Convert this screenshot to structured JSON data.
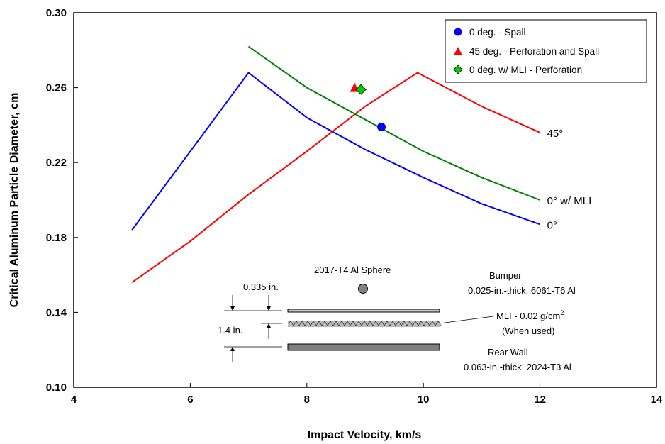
{
  "chart_data": {
    "type": "line",
    "xlabel": "Impact Velocity, km/s",
    "ylabel": "Critical Aluminum Particle Diameter, cm",
    "xlim": [
      4,
      14
    ],
    "ylim": [
      0.1,
      0.3
    ],
    "x_ticks": [
      "4",
      "6",
      "8",
      "10",
      "12",
      "14"
    ],
    "y_ticks": [
      "0.10",
      "0.14",
      "0.18",
      "0.22",
      "0.26",
      "0.30"
    ],
    "grid": false,
    "legend_position": "top-right",
    "series": [
      {
        "id": "0deg",
        "label": "0°",
        "color": "#0000ff",
        "points": [
          [
            5.0,
            0.184
          ],
          [
            7.0,
            0.268
          ],
          [
            8.0,
            0.244
          ],
          [
            9.0,
            0.227
          ],
          [
            10.0,
            0.212
          ],
          [
            11.0,
            0.198
          ],
          [
            12.0,
            0.187
          ]
        ]
      },
      {
        "id": "45deg",
        "label": "45°",
        "color": "#ff0000",
        "points": [
          [
            5.0,
            0.156
          ],
          [
            6.0,
            0.178
          ],
          [
            7.0,
            0.203
          ],
          [
            8.0,
            0.226
          ],
          [
            9.0,
            0.25
          ],
          [
            9.9,
            0.268
          ],
          [
            11.0,
            0.25
          ],
          [
            12.0,
            0.236
          ]
        ]
      },
      {
        "id": "0deg-mli",
        "label": "0° w/ MLI",
        "color": "#008000",
        "points": [
          [
            7.0,
            0.282
          ],
          [
            8.0,
            0.26
          ],
          [
            9.0,
            0.243
          ],
          [
            10.0,
            0.226
          ],
          [
            11.0,
            0.212
          ],
          [
            12.0,
            0.2
          ]
        ]
      }
    ],
    "markers": [
      {
        "name": "0 deg. - Spall",
        "shape": "circle",
        "color": "#0000ff",
        "x": 9.28,
        "y": 0.239
      },
      {
        "name": "45 deg. - Perforation and Spall",
        "shape": "triangle",
        "color": "#ff0000",
        "x": 8.82,
        "y": 0.26
      },
      {
        "name": "0 deg. w/ MLI - Perforation",
        "shape": "diamond",
        "color": "#00cc00",
        "x": 8.93,
        "y": 0.259
      }
    ],
    "inset": {
      "sphere_label": "2017-T4 Al Sphere",
      "bumper_label": "Bumper",
      "bumper_spec": "0.025-in.-thick, 6061-T6 Al",
      "mli_label": "MLI - 0.02 g/cm",
      "mli_sup": "2",
      "mli_note": "(When used)",
      "rear_wall_label": "Rear Wall",
      "rear_wall_spec": "0.063-in.-thick, 2024-T3 Al",
      "dim_bumper": "0.335 in.",
      "dim_spacing": "1.4 in."
    }
  }
}
